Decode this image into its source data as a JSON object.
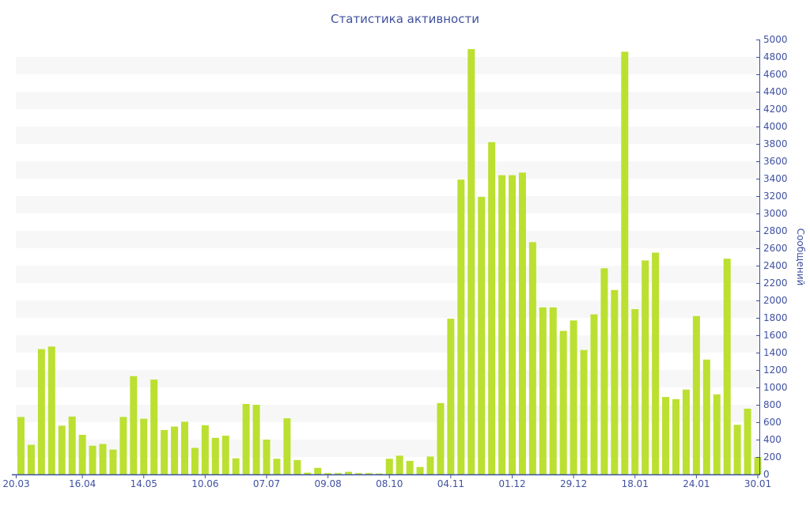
{
  "chart_data": {
    "type": "bar",
    "title": "Статистика активности",
    "ylabel": "Сообщений",
    "xlabel": "",
    "ylim": [
      0,
      5000
    ],
    "ytick_step": 200,
    "y_axis_side": "right",
    "grid": "alternating bands",
    "bar_color": "#bbe031",
    "text_color": "#3f51a0",
    "x_tick_labels": [
      {
        "bar": 0,
        "label": "20.03"
      },
      {
        "bar": 6,
        "label": "16.04"
      },
      {
        "bar": 12,
        "label": "14.05"
      },
      {
        "bar": 18,
        "label": "10.06"
      },
      {
        "bar": 24,
        "label": "07.07"
      },
      {
        "bar": 30,
        "label": "09.08"
      },
      {
        "bar": 36,
        "label": "08.10"
      },
      {
        "bar": 42,
        "label": "04.11"
      },
      {
        "bar": 48,
        "label": "01.12"
      },
      {
        "bar": 54,
        "label": "29.12"
      },
      {
        "bar": 60,
        "label": "18.01"
      },
      {
        "bar": 66,
        "label": "24.01"
      },
      {
        "bar": 72,
        "label": "30.01"
      }
    ],
    "values": [
      660,
      340,
      1440,
      1470,
      560,
      665,
      455,
      330,
      350,
      285,
      660,
      1130,
      640,
      1090,
      510,
      550,
      605,
      305,
      565,
      420,
      445,
      185,
      810,
      800,
      400,
      180,
      645,
      165,
      20,
      75,
      15,
      15,
      30,
      15,
      15,
      10,
      180,
      215,
      155,
      85,
      205,
      820,
      1790,
      3390,
      4890,
      3190,
      3820,
      3440,
      3440,
      3470,
      2670,
      1920,
      1920,
      1650,
      1770,
      1430,
      1840,
      2370,
      2120,
      4860,
      1900,
      2460,
      2550,
      890,
      865,
      975,
      1820,
      1320,
      920,
      2480,
      570,
      755,
      200
    ]
  }
}
